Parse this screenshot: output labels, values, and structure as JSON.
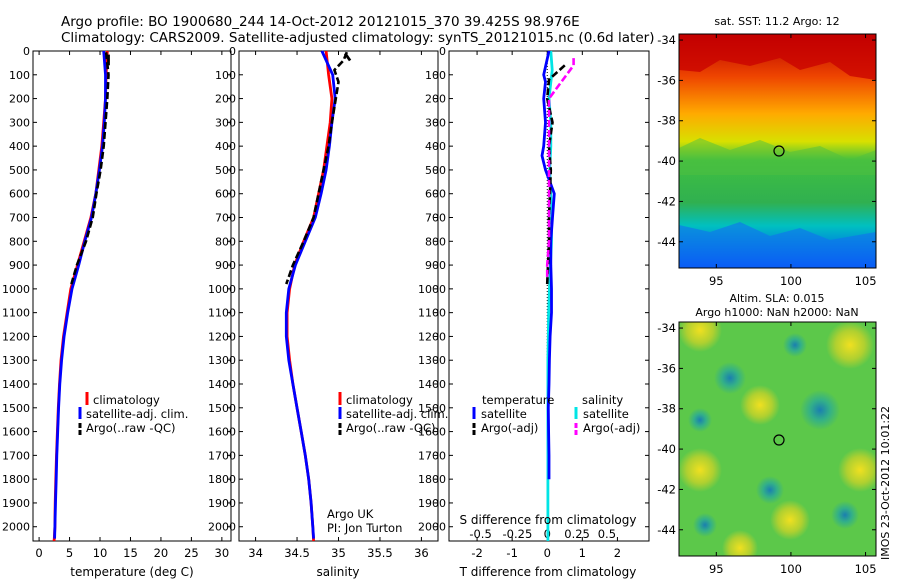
{
  "header": {
    "title_line1": "Argo profile: BO 1900680_244 14-Oct-2012 20121015_370 39.425S 98.976E",
    "title_line2": "Climatology: CARS2009. Satellite-adjusted climatology: synTS_20121015.nc (0.6d later)"
  },
  "colors": {
    "red": "#ff0000",
    "blue": "#0000ff",
    "black": "#000000",
    "cyan": "#00e5e5",
    "magenta": "#ff00ff"
  },
  "depth_axis": {
    "ticks": [
      0,
      100,
      200,
      300,
      400,
      500,
      600,
      700,
      800,
      900,
      1000,
      1100,
      1200,
      1300,
      1400,
      1500,
      1600,
      1700,
      1800,
      1900,
      2000
    ]
  },
  "chart_data": [
    {
      "id": "temp",
      "type": "line",
      "xlabel": "temperature (deg C)",
      "ylabel": "",
      "xlim": [
        -1,
        31.5
      ],
      "ylim": [
        2060,
        0
      ],
      "xticks": [
        0,
        5,
        10,
        15,
        20,
        25,
        30
      ],
      "legend": [
        "climatology",
        "satellite-adj. clim.",
        "Argo(..raw -QC)"
      ],
      "series": [
        {
          "name": "climatology",
          "color": "red",
          "x": [
            11.2,
            11.0,
            10.9,
            10.6,
            10.3,
            9.8,
            9.3,
            8.5,
            7.4,
            6.3,
            5.2,
            4.6,
            4.0,
            3.6,
            3.35,
            3.15,
            3.0,
            2.85,
            2.75,
            2.65,
            2.6,
            2.5,
            2.45
          ],
          "y": [
            0,
            100,
            200,
            300,
            400,
            500,
            600,
            700,
            800,
            900,
            1000,
            1100,
            1200,
            1300,
            1400,
            1500,
            1600,
            1700,
            1800,
            1900,
            2000,
            2050,
            2060
          ]
        },
        {
          "name": "satellite-adj. clim.",
          "color": "blue",
          "x": [
            10.6,
            10.9,
            10.9,
            10.7,
            10.4,
            9.9,
            9.3,
            8.6,
            7.5,
            6.5,
            5.4,
            4.7,
            4.1,
            3.7,
            3.4,
            3.2,
            3.05,
            2.9,
            2.8,
            2.7,
            2.6,
            2.55
          ],
          "y": [
            0,
            100,
            200,
            300,
            400,
            500,
            600,
            700,
            800,
            900,
            1000,
            1100,
            1200,
            1300,
            1400,
            1500,
            1600,
            1700,
            1800,
            1900,
            2000,
            2050
          ]
        },
        {
          "name": "Argo(..raw -QC)",
          "color": "black",
          "dashed": true,
          "x": [
            11.0,
            11.4,
            11.2,
            10.9,
            10.6,
            10.1,
            9.4,
            8.8,
            7.7,
            6.2,
            5.3
          ],
          "y": [
            5,
            100,
            200,
            300,
            400,
            500,
            600,
            700,
            800,
            900,
            980
          ]
        },
        {
          "name": "Argo(..raw -QC)",
          "color": "black",
          "dashed": false,
          "x": [
            11.4,
            11.4
          ],
          "y": [
            15,
            60
          ]
        }
      ]
    },
    {
      "id": "sal",
      "type": "line",
      "xlabel": "salinity",
      "ylabel": "",
      "xlim": [
        33.8,
        36.2
      ],
      "ylim": [
        2060,
        0
      ],
      "xticks": [
        34,
        34.5,
        35,
        35.5,
        36
      ],
      "xticklabels": [
        "34",
        "34.5",
        "35",
        "35.5",
        "36"
      ],
      "legend": [
        "climatology",
        "satellite-adj. clim.",
        "Argo(..raw -QC)"
      ],
      "annotation": [
        "Argo UK",
        "PI: Jon Turton"
      ],
      "series": [
        {
          "name": "climatology",
          "color": "red",
          "x": [
            34.85,
            34.88,
            34.92,
            34.9,
            34.86,
            34.82,
            34.76,
            34.7,
            34.58,
            34.47,
            34.41,
            34.38,
            34.38,
            34.41,
            34.45,
            34.5,
            34.55,
            34.6,
            34.64,
            34.67,
            34.69,
            34.7
          ],
          "y": [
            0,
            100,
            200,
            300,
            400,
            500,
            600,
            700,
            800,
            900,
            1000,
            1100,
            1200,
            1300,
            1400,
            1500,
            1600,
            1700,
            1800,
            1900,
            2000,
            2060
          ]
        },
        {
          "name": "satellite-adj. clim.",
          "color": "blue",
          "x": [
            34.8,
            34.93,
            34.96,
            34.92,
            34.89,
            34.85,
            34.79,
            34.72,
            34.6,
            34.48,
            34.4,
            34.37,
            34.37,
            34.4,
            34.45,
            34.5,
            34.55,
            34.6,
            34.64,
            34.67,
            34.69,
            34.7
          ],
          "y": [
            0,
            100,
            200,
            300,
            400,
            500,
            600,
            700,
            800,
            900,
            1000,
            1100,
            1200,
            1300,
            1400,
            1500,
            1600,
            1700,
            1800,
            1900,
            2000,
            2050
          ]
        },
        {
          "name": "Argo(..raw -QC)",
          "color": "black",
          "dashed": true,
          "x": [
            35.1,
            35.06,
            34.95,
            35.0,
            34.92,
            34.88,
            34.82,
            34.76,
            34.7,
            34.58,
            34.45,
            34.37
          ],
          "y": [
            5,
            40,
            80,
            130,
            300,
            400,
            500,
            600,
            700,
            800,
            900,
            980
          ]
        },
        {
          "name": "Argo(..raw -QC)",
          "color": "black",
          "dashed": false,
          "x": [
            35.08,
            35.14
          ],
          "y": [
            10,
            40
          ]
        }
      ]
    },
    {
      "id": "diff",
      "type": "line",
      "xlabel": "T difference from climatology",
      "x2label": "S difference from climatology",
      "xlim": [
        -2.8,
        2.9
      ],
      "ylim": [
        2060,
        0
      ],
      "xticks": [
        -2,
        -1,
        0,
        1,
        2
      ],
      "xticklabels": [
        "-2",
        "-1",
        "0",
        "1",
        "2"
      ],
      "x2ticklabels": [
        "-0.5",
        "-0.25",
        "0",
        "0.25",
        "0.5"
      ],
      "x2ticks": [
        -1.9,
        -0.85,
        0,
        0.85,
        1.7
      ],
      "legend_temperature": {
        "title": "temperature",
        "items": [
          "satellite",
          "Argo(-adj)"
        ]
      },
      "legend_salinity": {
        "title": "salinity",
        "items": [
          "satellite",
          "Argo(-adj)"
        ]
      },
      "series": [
        {
          "name": "salinity satellite",
          "color": "cyan",
          "x": [
            0.1,
            0.14,
            0.05,
            0.1,
            0.1,
            0.07,
            0.1,
            0.12,
            0.12,
            0.09,
            0.06,
            0.04,
            0.03,
            0.02,
            0.02,
            0.02,
            0.02,
            0.02,
            0.02,
            0.02,
            0.02,
            0.02
          ],
          "y": [
            0,
            80,
            200,
            300,
            400,
            500,
            600,
            700,
            800,
            900,
            1000,
            1100,
            1200,
            1300,
            1400,
            1500,
            1600,
            1700,
            1800,
            1900,
            2000,
            2060
          ]
        },
        {
          "name": "temperature satellite",
          "color": "blue",
          "x": [
            0.05,
            -0.1,
            -0.05,
            -0.1,
            -0.05,
            -0.1,
            -0.15,
            -0.05,
            0.2,
            0.15,
            0.1,
            0.1,
            0.12,
            0.12,
            0.08,
            0.06,
            0.05,
            0.03,
            0.04,
            0.05,
            0.05
          ],
          "y": [
            0,
            100,
            130,
            200,
            300,
            400,
            440,
            500,
            600,
            700,
            800,
            900,
            1000,
            1100,
            1200,
            1300,
            1400,
            1500,
            1600,
            1700,
            1800
          ]
        },
        {
          "name": "temperature Argo(-adj)",
          "color": "black",
          "dashed": true,
          "x": [
            0.5,
            0.05,
            0.0,
            0.15,
            0.05,
            0.1,
            0.05,
            0.05,
            0.0
          ],
          "y": [
            60,
            120,
            200,
            300,
            400,
            500,
            700,
            800,
            980
          ]
        },
        {
          "name": "salinity Argo(-adj)",
          "color": "magenta",
          "dashed": true,
          "x": [
            0.75,
            0.75,
            0.05,
            0.05,
            0.05,
            0.0,
            0.0
          ],
          "y": [
            30,
            60,
            200,
            500,
            800,
            900,
            950
          ]
        }
      ]
    }
  ],
  "maps": {
    "sst": {
      "title": "sat. SST: 11.2 Argo: 12",
      "ylabels": [
        "-34",
        "-36",
        "-38",
        "-40",
        "-42",
        "-44"
      ],
      "xlabels": [
        "95",
        "100",
        "105"
      ]
    },
    "sla": {
      "title_line1": "Altim. SLA: 0.015",
      "title_line2": "Argo h1000: NaN h2000: NaN",
      "ylabels": [
        "-34",
        "-36",
        "-38",
        "-40",
        "-42",
        "-44"
      ],
      "xlabels": [
        "95",
        "100",
        "105"
      ]
    }
  },
  "watermark": "IMOS 23-Oct-2012 10:01:22"
}
